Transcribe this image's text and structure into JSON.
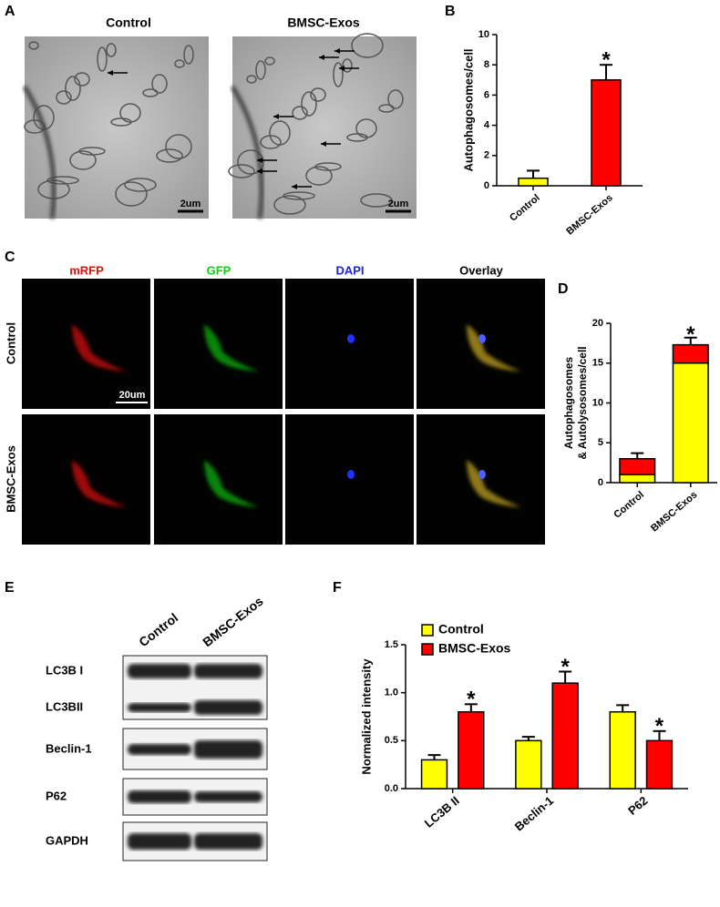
{
  "figure": {
    "panel_a": {
      "label": "A",
      "columns": [
        "Control",
        "BMSC-Exos"
      ],
      "scale_bar": "2um"
    },
    "panel_c": {
      "label": "C",
      "columns": [
        {
          "text": "mRFP",
          "color": "#e01010"
        },
        {
          "text": "GFP",
          "color": "#10d010"
        },
        {
          "text": "DAPI",
          "color": "#2020e0"
        },
        {
          "text": "Overlay",
          "color": "#000000"
        }
      ],
      "rows": [
        "Control",
        "BMSC-Exos"
      ],
      "scale_bar": "20um"
    },
    "panel_e": {
      "label": "E",
      "lanes": [
        "Control",
        "BMSC-Exos"
      ],
      "bands": [
        "LC3B I",
        "LC3BII",
        "Beclin-1",
        "P62",
        "GAPDH"
      ]
    }
  },
  "chart_data": [
    {
      "type": "bar",
      "panel": "B",
      "ylabel": "Autophagosomes/cell",
      "categories": [
        "Control",
        "BMSC-Exos"
      ],
      "values": [
        0.5,
        7
      ],
      "errors": [
        0.5,
        1.0
      ],
      "colors": [
        "#ffff00",
        "#ff0000"
      ],
      "significance": [
        null,
        "*"
      ],
      "ylim": [
        0,
        10
      ],
      "yticks": [
        0,
        2,
        4,
        6,
        8,
        10
      ]
    },
    {
      "type": "stacked-bar",
      "panel": "D",
      "ylabel": [
        "Autophagosomes",
        "& Autolysosomes/cell"
      ],
      "categories": [
        "Control",
        "BMSC-Exos"
      ],
      "series": [
        {
          "color": "#ffff00",
          "values": [
            1,
            15
          ]
        },
        {
          "color": "#ff0000",
          "values": [
            2,
            2.3
          ],
          "errors": [
            0.7,
            0.9
          ]
        }
      ],
      "significance": [
        null,
        "*"
      ],
      "ylim": [
        0,
        20
      ],
      "yticks": [
        0,
        5,
        10,
        15,
        20
      ]
    },
    {
      "type": "grouped-bar",
      "panel": "F",
      "ylabel": "Normalized intensity",
      "categories": [
        "LC3B II",
        "Beclin-1",
        "P62"
      ],
      "series": [
        {
          "name": "Control",
          "color": "#ffff00",
          "values": [
            0.3,
            0.5,
            0.8
          ],
          "errors": [
            0.05,
            0.04,
            0.07
          ],
          "significance": [
            null,
            null,
            null
          ]
        },
        {
          "name": "BMSC-Exos",
          "color": "#ff0000",
          "values": [
            0.8,
            1.1,
            0.5
          ],
          "errors": [
            0.08,
            0.12,
            0.1
          ],
          "significance": [
            "*",
            "*",
            "*"
          ]
        }
      ],
      "legend": "top-left",
      "ylim": [
        0,
        1.5
      ],
      "yticks": [
        {
          "value": 0,
          "label": "0.0"
        },
        {
          "value": 0.5,
          "label": "0.5"
        },
        {
          "value": 1,
          "label": "1.0"
        },
        {
          "value": 1.5,
          "label": "1.5"
        }
      ]
    }
  ]
}
